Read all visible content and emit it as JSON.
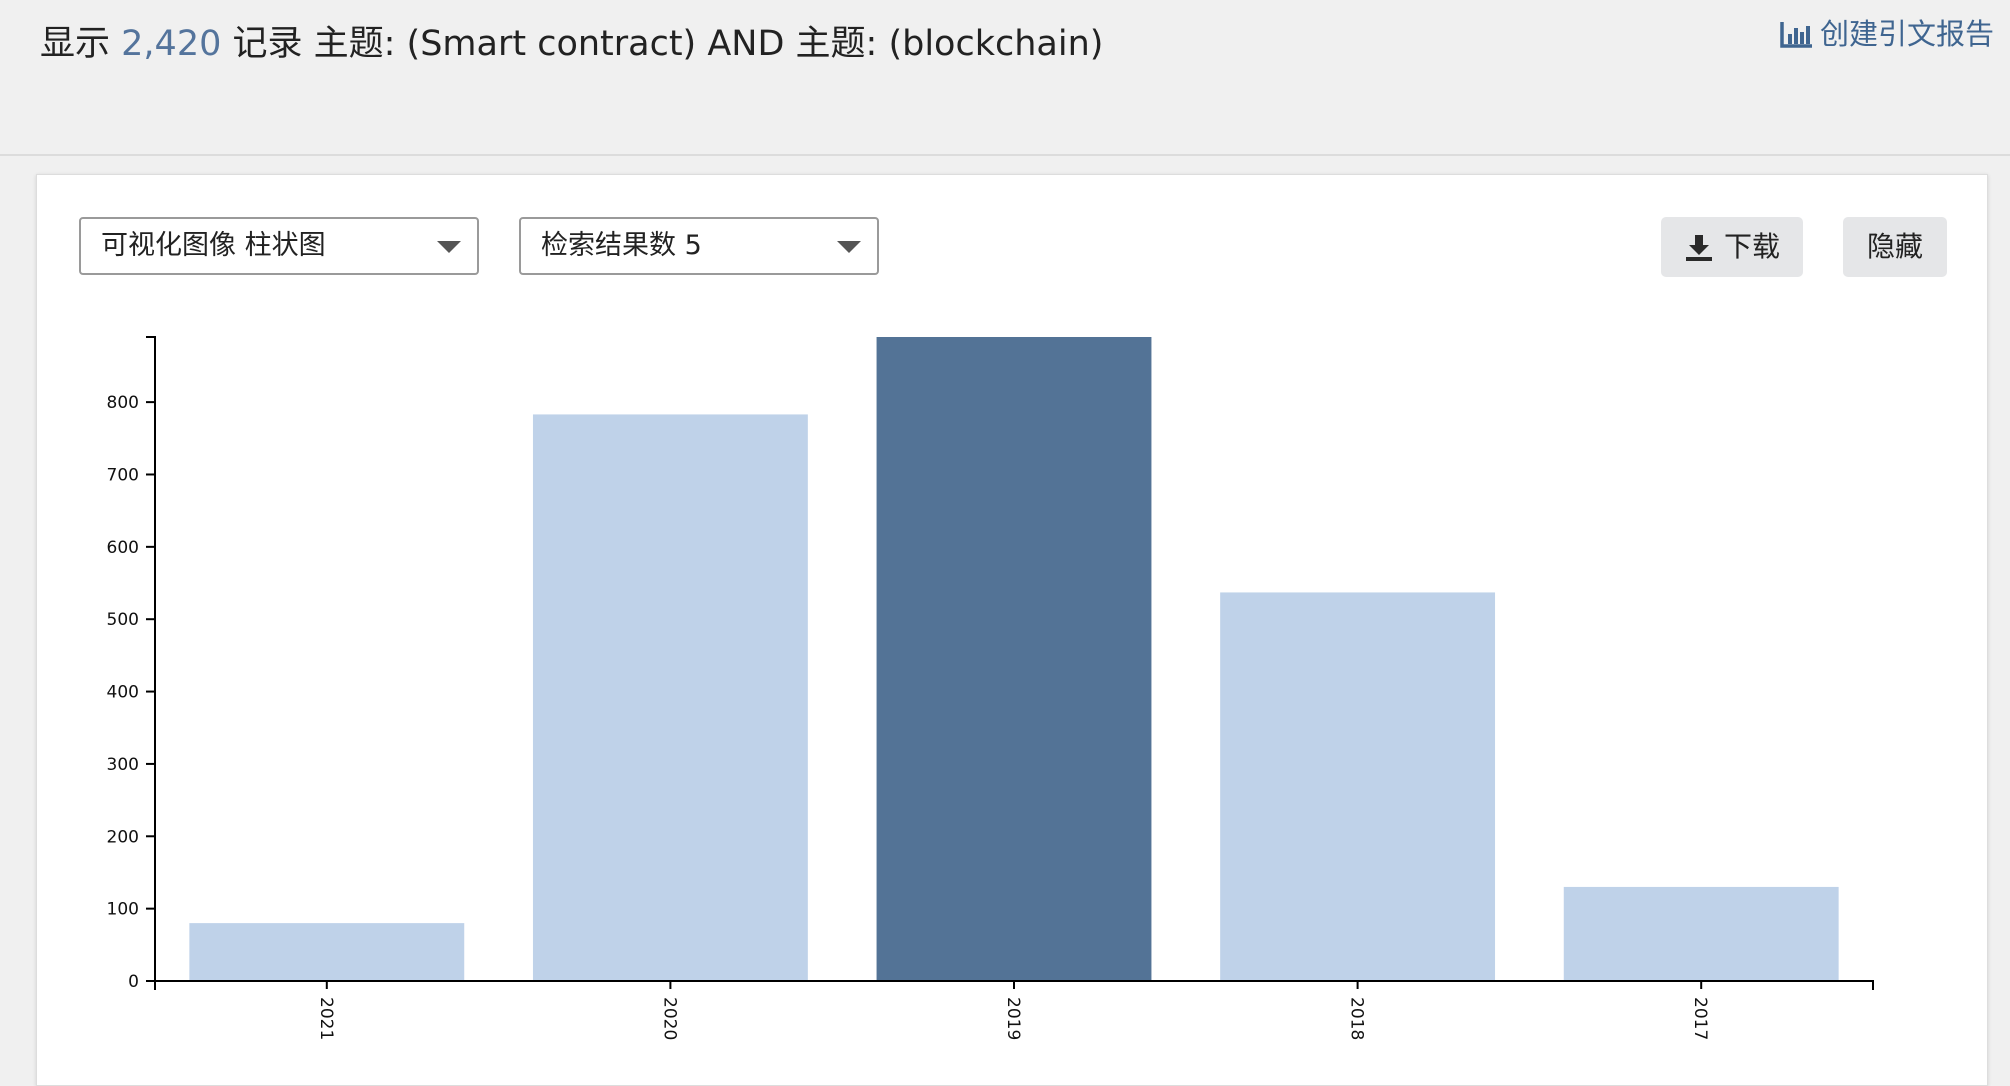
{
  "header": {
    "prefix": "显示",
    "count": "2,420",
    "query": "记录 主题: (Smart contract) AND 主题: (blockchain)",
    "citation_report": "创建引文报告",
    "citation_icon": "bar-chart-icon"
  },
  "controls": {
    "viz_select": "可视化图像 柱状图",
    "results_select": "检索结果数 5",
    "download_label": "下载",
    "download_icon": "download-icon",
    "hide_label": "隐藏"
  },
  "colors": {
    "bar": "#bfd2e9",
    "bar_highlight": "#537396",
    "link": "#3f6590"
  },
  "chart_data": {
    "type": "bar",
    "categories": [
      "2021",
      "2020",
      "2019",
      "2018",
      "2017"
    ],
    "values": [
      80,
      783,
      890,
      537,
      130
    ],
    "highlighted": "2019",
    "yticks": [
      0,
      100,
      200,
      300,
      400,
      500,
      600,
      700,
      800
    ],
    "ylim": [
      0,
      890
    ],
    "title": "",
    "xlabel": "",
    "ylabel": "",
    "grid": false,
    "legend": "none"
  }
}
